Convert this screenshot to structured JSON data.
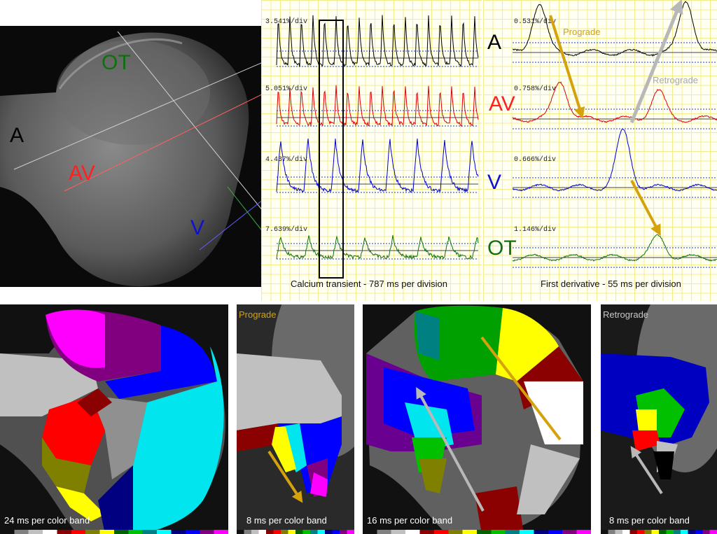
{
  "top_left": {
    "labels": {
      "a": "A",
      "ot": "OT",
      "av": "AV",
      "v": "V"
    }
  },
  "transient": {
    "scales": [
      "3.541%/div",
      "5.051%/div",
      "4.437%/div",
      "7.639%/div"
    ],
    "caption": "Calcium transient - 787 ms per division"
  },
  "derivative": {
    "scales": [
      "0.531%/div",
      "0.758%/div",
      "0.666%/div",
      "1.146%/div"
    ],
    "channels": [
      "A",
      "AV",
      "V",
      "OT"
    ],
    "caption": "First derivative - 55 ms per division",
    "prograde_label": "Prograde",
    "retrograde_label": "Retrograde"
  },
  "maps": [
    {
      "title": "",
      "caption": "24 ms per color band"
    },
    {
      "title": "Prograde",
      "caption": "8 ms per color band"
    },
    {
      "title": "",
      "caption": "16 ms per color band"
    },
    {
      "title": "Retrograde",
      "caption": "8 ms per color band"
    }
  ],
  "colors": {
    "A": "#000000",
    "AV": "#e00000",
    "V": "#0000d0",
    "OT": "#107010",
    "prograde_arrow": "#d4a20c",
    "retrograde_arrow": "#b8b8b8",
    "band": [
      "#111111",
      "#808080",
      "#c0c0c0",
      "#ffffff",
      "#8b0000",
      "#ff0000",
      "#808000",
      "#ffff00",
      "#006400",
      "#00c000",
      "#008080",
      "#00ffff",
      "#000080",
      "#0000ff",
      "#800080",
      "#ff00ff"
    ]
  }
}
